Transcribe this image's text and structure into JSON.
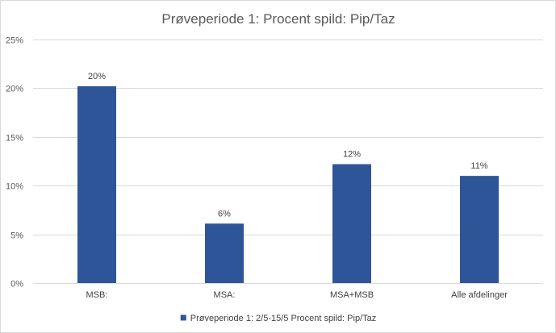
{
  "chart_data": {
    "type": "bar",
    "title": "Prøveperiode 1: Procent spild: Pip/Taz",
    "categories": [
      "MSB:",
      "MSA:",
      "MSA+MSB",
      "Alle afdelinger"
    ],
    "series": [
      {
        "name": "Prøveperiode 1: 2/5-15/5  Procent spild: Pip/Taz",
        "values": [
          0.202,
          0.061,
          0.122,
          0.11
        ],
        "labels": [
          "20%",
          "6%",
          "12%",
          "11%"
        ],
        "color": "#2E5597"
      }
    ],
    "ylim": [
      0,
      0.25
    ],
    "yticks": [
      0,
      0.05,
      0.1,
      0.15,
      0.2,
      0.25
    ],
    "ytick_labels": [
      "0%",
      "5%",
      "10%",
      "15%",
      "20%",
      "25%"
    ],
    "xlabel": "",
    "ylabel": "",
    "grid": true,
    "legend_position": "bottom"
  }
}
